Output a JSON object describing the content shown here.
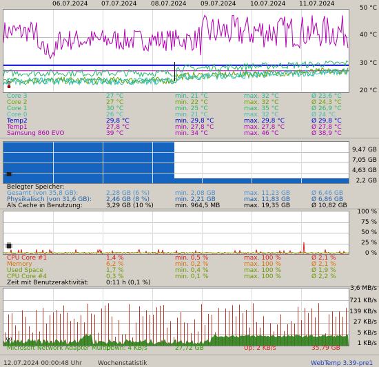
{
  "dates": [
    "06.07.2024",
    "07.07.2024",
    "08.07.2024",
    "09.07.2024",
    "10.07.2024",
    "11.07.2024"
  ],
  "temp": {
    "y_labels": [
      "50 °C",
      "40 °C",
      "30 °C",
      "20 °C"
    ],
    "rows": [
      {
        "name": "Core 3",
        "cur": "27 °C",
        "min": "min. 21 °C",
        "max": "max. 32 °C",
        "avg": "Ø 23,6 °C",
        "color": "#21b99a"
      },
      {
        "name": "Core 2",
        "cur": "27 °C",
        "min": "min. 22 °C",
        "max": "max. 32 °C",
        "avg": "Ø 24,3 °C",
        "color": "#6aa300"
      },
      {
        "name": "Core 1",
        "cur": "30 °C",
        "min": "min. 25 °C",
        "max": "max. 35 °C",
        "avg": "Ø 26,9 °C",
        "color": "#26b66a"
      },
      {
        "name": "Core 0",
        "cur": "26 °C",
        "min": "min. 21 °C",
        "max": "max. 32 °C",
        "avg": "Ø 24 °C",
        "color": "#3fbfb0"
      },
      {
        "name": "Temp2",
        "cur": "29,8 °C",
        "min": "min. 29,8 °C",
        "max": "max. 29,8 °C",
        "avg": "Ø 29,8 °C",
        "color": "#0000c8"
      },
      {
        "name": "Temp1",
        "cur": "27,8 °C",
        "min": "min. 27,8 °C",
        "max": "max. 27,8 °C",
        "avg": "Ø 27,8 °C",
        "color": "#b000b0"
      },
      {
        "name": "Samsung 860 EVO",
        "cur": "39 °C",
        "min": "min. 34 °C",
        "max": "max. 46 °C",
        "avg": "Ø 38,9 °C",
        "color": "#b000b0"
      }
    ]
  },
  "memory": {
    "y_labels": [
      "9,47 GB",
      "7,05 GB",
      "4,63 GB",
      "2,2 GB"
    ],
    "header": "Belegter Speicher:",
    "rows": [
      {
        "name": "Gesamt (von 35,8 GB):",
        "cur": "2,28 GB (6 %)",
        "min": "min. 2,08 GB",
        "max": "max. 11,23 GB",
        "avg": "Ø 6,46 GB",
        "color": "#4a8fd0"
      },
      {
        "name": "Physikalisch (von 31,6 GB):",
        "cur": "2,46 GB (8 %)",
        "min": "min. 2,21 GB",
        "max": "max. 11,83 GB",
        "avg": "Ø 6,86 GB",
        "color": "#1a5fb0"
      },
      {
        "name": "Als Cache in Benutzung:",
        "cur": "3,29 GB (10 %)",
        "min": "min. 964,5 MB",
        "max": "max. 19,35 GB",
        "avg": "Ø 10,82 GB",
        "color": "#000000"
      }
    ]
  },
  "cpu": {
    "y_labels": [
      "100 %",
      "75 %",
      "50 %",
      "25 %",
      "0 %"
    ],
    "rows": [
      {
        "name": "CPU Core #1",
        "cur": "1,4 %",
        "min": "min. 0,5 %",
        "max": "max. 100 %",
        "avg": "Ø 2,1 %",
        "color": "#d81e1e"
      },
      {
        "name": "Memory",
        "cur": "6,2 %",
        "min": "min. 0,2 %",
        "max": "max. 100 %",
        "avg": "Ø 2,1 %",
        "color": "#d87000"
      },
      {
        "name": "Used Space",
        "cur": "1,7 %",
        "min": "min. 0,4 %",
        "max": "max. 100 %",
        "avg": "Ø 1,9 %",
        "color": "#6a9a00"
      },
      {
        "name": "CPU Core #4",
        "cur": "0,3 %",
        "min": "min. 0,1 %",
        "max": "max. 100 %",
        "avg": "Ø 2,2 %",
        "color": "#6a9a00"
      }
    ],
    "activity_label": "Zeit mit Benutzeraktivität:",
    "activity_value": "0:11 h (0,1 %)"
  },
  "network": {
    "y_labels": [
      "3,6 MB/s",
      "721 KB/s",
      "139 KB/s",
      "27 KB/s",
      "5 KB/s",
      "1 KB/s"
    ],
    "name": "Microsoft Network Adapter Multipl",
    "down": "Down: 4 KB/s",
    "down_total": "27,72 GB",
    "up": "Up: 2 KB/s",
    "up_total": "35,79 GB"
  },
  "status": {
    "datetime": "12.07.2024 00:00:48 Uhr",
    "mode": "Wochenstatistik",
    "version": "WebTemp 3.39-pre1"
  }
}
